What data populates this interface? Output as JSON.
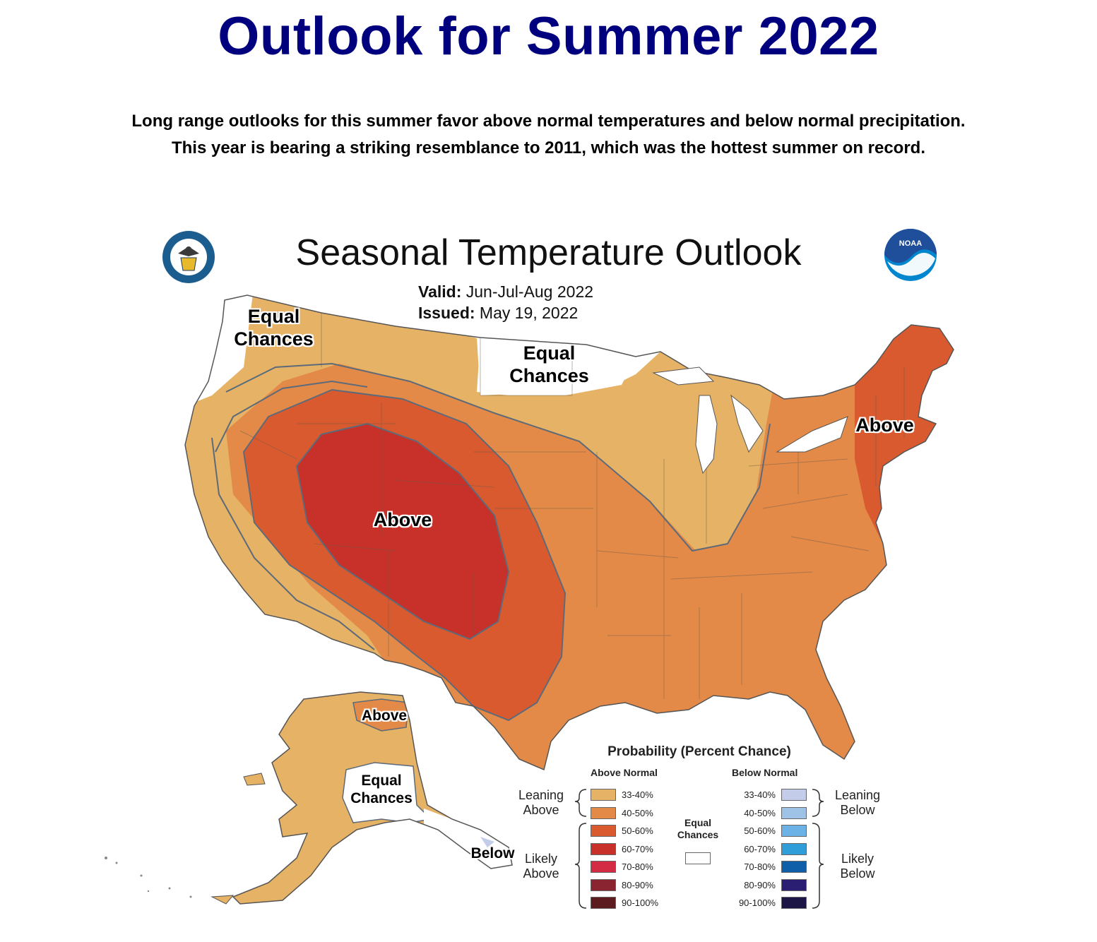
{
  "header": {
    "title": "Outlook for Summer 2022",
    "subtitle_line1": "Long range outlooks for this summer favor above normal temperatures and below normal precipitation.",
    "subtitle_line2": "This year is bearing a striking resemblance to 2011, which was the hottest summer on record."
  },
  "map": {
    "title": "Seasonal Temperature Outlook",
    "valid_label": "Valid:",
    "valid_value": "Jun-Jul-Aug 2022",
    "issued_label": "Issued:",
    "issued_value": "May 19, 2022",
    "logos": {
      "left": "department-of-commerce-seal",
      "right": "noaa-logo",
      "noaa_text": "NOAA"
    },
    "region_labels": {
      "pacific_nw": "Equal Chances",
      "northern_plains": "Equal Chances",
      "northeast": "Above",
      "central_west": "Above",
      "alaska_north": "Above",
      "alaska_interior": "Equal Chances",
      "alaska_southeast": "Below"
    },
    "colors": {
      "lean_above": "#e6b265",
      "above_40_50": "#e38a48",
      "above_50_60": "#da5a30",
      "above_60_70": "#c8302a",
      "border": "#5c6a7a"
    }
  },
  "legend": {
    "title": "Probability (Percent Chance)",
    "above_header": "Above Normal",
    "below_header": "Below Normal",
    "equal_chances": "Equal Chances",
    "leaning_above": "Leaning Above",
    "likely_above": "Likely Above",
    "leaning_below": "Leaning Below",
    "likely_below": "Likely Below",
    "above": [
      {
        "range": "33-40%",
        "color": "#e6b265"
      },
      {
        "range": "40-50%",
        "color": "#e38a48"
      },
      {
        "range": "50-60%",
        "color": "#da5a30"
      },
      {
        "range": "60-70%",
        "color": "#c8302a"
      },
      {
        "range": "70-80%",
        "color": "#d42b45"
      },
      {
        "range": "80-90%",
        "color": "#8a2431"
      },
      {
        "range": "90-100%",
        "color": "#5c1b1f"
      }
    ],
    "below": [
      {
        "range": "33-40%",
        "color": "#c3cde9"
      },
      {
        "range": "40-50%",
        "color": "#9fc3e7"
      },
      {
        "range": "50-60%",
        "color": "#6cb2e6"
      },
      {
        "range": "60-70%",
        "color": "#2f9ed9"
      },
      {
        "range": "70-80%",
        "color": "#0f5ea8"
      },
      {
        "range": "80-90%",
        "color": "#2a1e72"
      },
      {
        "range": "90-100%",
        "color": "#1c1646"
      }
    ]
  }
}
